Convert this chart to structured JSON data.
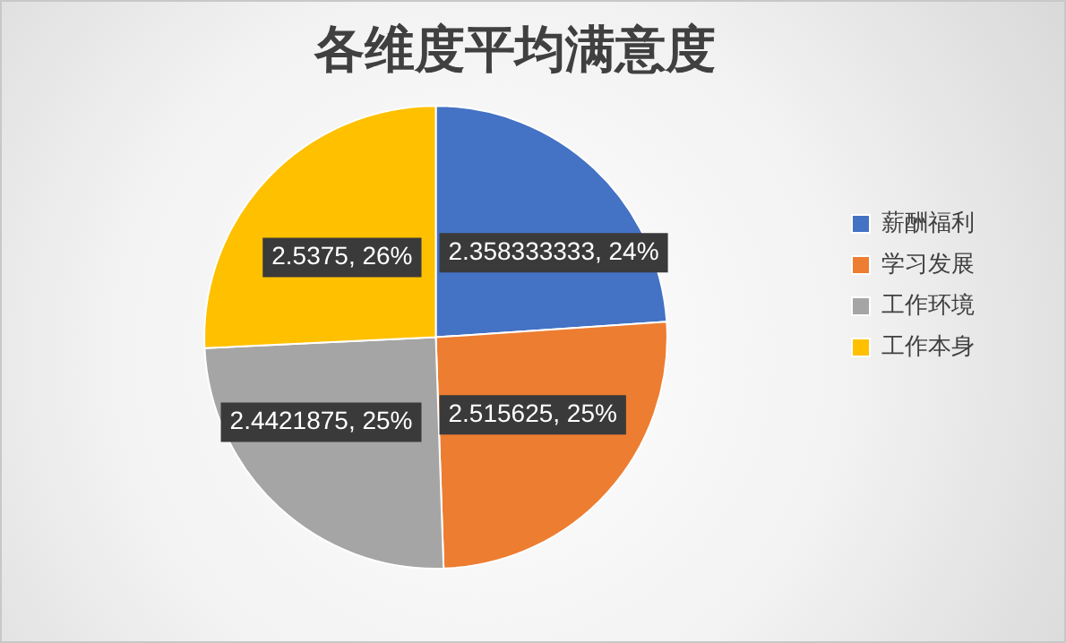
{
  "chart_data": {
    "type": "pie",
    "title": "各维度平均满意度",
    "categories": [
      "薪酬福利",
      "学习发展",
      "工作环境",
      "工作本身"
    ],
    "values": [
      2.358333333,
      2.515625,
      2.4421875,
      2.5375
    ],
    "colors": [
      "#4472c4",
      "#ed7d31",
      "#a5a5a5",
      "#ffc000"
    ],
    "value_labels": [
      "2.358333333, 24%",
      "2.515625, 25%",
      "2.4421875, 25%",
      "2.5375, 26%"
    ],
    "legend": "right"
  }
}
